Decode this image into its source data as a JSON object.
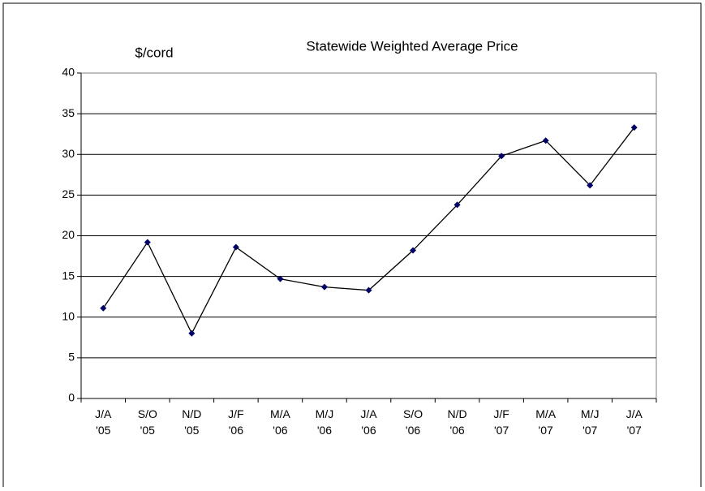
{
  "chart_data": {
    "type": "line",
    "title": "Statewide Weighted Average Price",
    "y_label": "$/cord",
    "categories": [
      "J/A '05",
      "S/O '05",
      "N/D '05",
      "J/F '06",
      "M/A '06",
      "M/J '06",
      "J/A '06",
      "S/O '06",
      "N/D '06",
      "J/F '07",
      "M/A '07",
      "M/J '07",
      "J/A '07"
    ],
    "series": [
      {
        "name": "Statewide Weighted Average Price",
        "color": "#000000",
        "marker_color": "#000066",
        "values": [
          11.1,
          19.2,
          8.0,
          18.6,
          14.7,
          13.7,
          13.3,
          18.2,
          23.8,
          29.8,
          31.7,
          26.2,
          33.3
        ]
      }
    ],
    "ylim": [
      0,
      40
    ],
    "yticks": [
      0,
      5,
      10,
      15,
      20,
      25,
      30,
      35,
      40
    ],
    "grid": true
  }
}
